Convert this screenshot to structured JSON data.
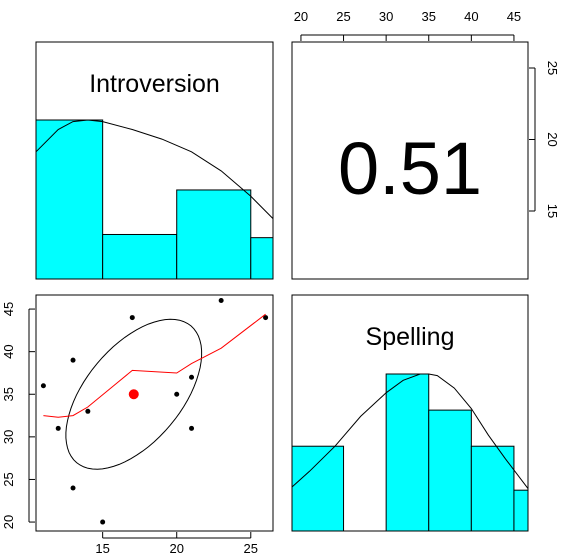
{
  "chart_data": {
    "type": "scatter",
    "variables": [
      "Introversion",
      "Spelling"
    ],
    "colors": {
      "histogram_fill": "#00ffff",
      "lowess_line": "#ff0000",
      "centroid": "#ff0000",
      "points": "#000000",
      "density": "#000000",
      "ellipse": "#000000"
    },
    "correlation": {
      "label": "0.51",
      "value": 0.51
    },
    "panels": [
      {
        "position": "top-left",
        "kind": "histogram-density",
        "label": "Introversion"
      },
      {
        "position": "top-right",
        "kind": "correlation",
        "label": "0.51"
      },
      {
        "position": "bottom-left",
        "kind": "scatter-ellipse-lowess"
      },
      {
        "position": "bottom-right",
        "kind": "histogram-density",
        "label": "Spelling"
      }
    ],
    "introversion_axis": {
      "range": [
        10.5,
        26.5
      ],
      "ticks": [
        15,
        20,
        25
      ],
      "tick_labels": [
        "15",
        "20",
        "25"
      ],
      "location": "bottom"
    },
    "spelling_axis": {
      "range": [
        18.95,
        46.65
      ],
      "ticks": [
        20,
        25,
        30,
        35,
        40,
        45
      ],
      "tick_labels": [
        "20",
        "25",
        "30",
        "35",
        "40",
        "45"
      ],
      "location": "left and top"
    },
    "right_axis": {
      "ticks": [
        15,
        20,
        25
      ],
      "tick_labels": [
        "15",
        "20",
        "25"
      ],
      "location": "right"
    },
    "scatter": {
      "x_variable": "Introversion",
      "y_variable": "Spelling",
      "points": [
        {
          "x": 11,
          "y": 36
        },
        {
          "x": 12,
          "y": 31
        },
        {
          "x": 13,
          "y": 39
        },
        {
          "x": 13,
          "y": 24
        },
        {
          "x": 14,
          "y": 33
        },
        {
          "x": 15,
          "y": 20
        },
        {
          "x": 17,
          "y": 44
        },
        {
          "x": 20,
          "y": 35
        },
        {
          "x": 21,
          "y": 37
        },
        {
          "x": 21,
          "y": 31
        },
        {
          "x": 23,
          "y": 46
        },
        {
          "x": 26,
          "y": 44
        }
      ],
      "centroid": {
        "x": 17.1,
        "y": 35
      },
      "ellipse": {
        "center": [
          17.1,
          35
        ],
        "semi_axes": [
          5.37,
          2.86
        ],
        "angle_deg": 38
      },
      "lowess": {
        "x": [
          11,
          12,
          13,
          14,
          17,
          20,
          21,
          23,
          26
        ],
        "y": [
          32.5,
          32.3,
          32.5,
          33.5,
          37.8,
          37.5,
          38.6,
          40.4,
          44.4
        ]
      }
    },
    "introversion_histogram": {
      "bins": [
        [
          10.5,
          15
        ],
        [
          15,
          20
        ],
        [
          20,
          25
        ],
        [
          25,
          26.5
        ]
      ],
      "density": [
        1.0,
        0.28,
        0.56,
        0.26
      ]
    },
    "introversion_density": {
      "x": [
        10.5,
        12,
        13,
        14,
        15,
        17,
        19,
        21,
        23,
        25,
        26.5
      ],
      "y": [
        0.8,
        0.94,
        0.99,
        1.0,
        0.99,
        0.94,
        0.88,
        0.8,
        0.68,
        0.52,
        0.38
      ]
    },
    "spelling_histogram": {
      "bins": [
        [
          18.95,
          25
        ],
        [
          25,
          30
        ],
        [
          30,
          35
        ],
        [
          35,
          40
        ],
        [
          40,
          45
        ],
        [
          45,
          46.65
        ]
      ],
      "density": [
        0.54,
        0,
        1.0,
        0.77,
        0.54,
        0.26
      ]
    },
    "spelling_density": {
      "x": [
        18.95,
        21,
        24,
        27,
        30,
        32,
        34,
        35,
        36,
        38,
        40,
        42,
        44,
        46.65
      ],
      "y": [
        0.28,
        0.38,
        0.54,
        0.73,
        0.88,
        0.96,
        1.0,
        1.0,
        0.99,
        0.91,
        0.78,
        0.61,
        0.46,
        0.27
      ]
    }
  }
}
